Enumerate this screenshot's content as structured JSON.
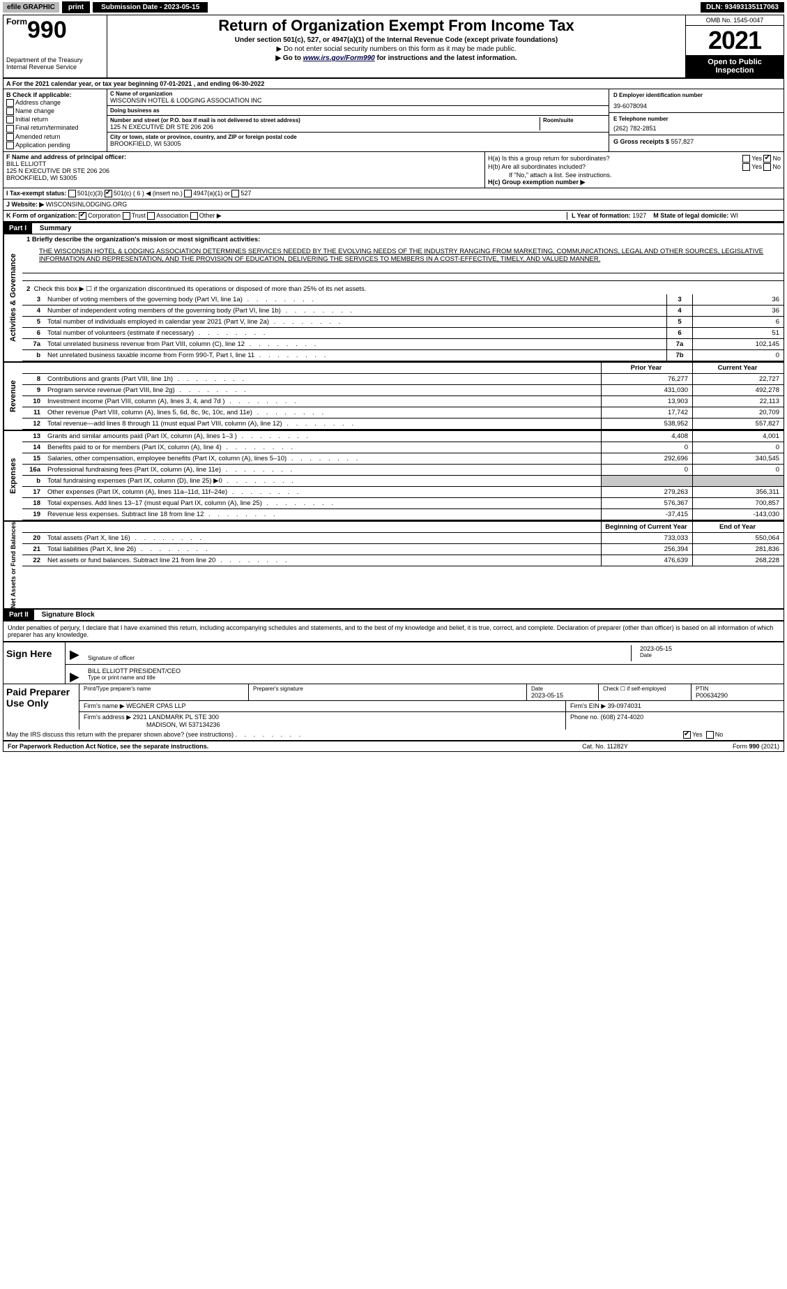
{
  "topbar": {
    "efile": "efile GRAPHIC",
    "print": "print",
    "submission": "Submission Date - 2023-05-15",
    "dln": "DLN: 93493135117063"
  },
  "header": {
    "form_prefix": "Form",
    "form_number": "990",
    "title": "Return of Organization Exempt From Income Tax",
    "sub1": "Under section 501(c), 527, or 4947(a)(1) of the Internal Revenue Code (except private foundations)",
    "sub2": "▶ Do not enter social security numbers on this form as it may be made public.",
    "sub3_pre": "▶ Go to ",
    "sub3_link": "www.irs.gov/Form990",
    "sub3_post": " for instructions and the latest information.",
    "dept1": "Department of the Treasury",
    "dept2": "Internal Revenue Service",
    "omb": "OMB No. 1545-0047",
    "year": "2021",
    "opi": "Open to Public Inspection"
  },
  "rowA": "A For the 2021 calendar year, or tax year beginning 07-01-2021     , and ending 06-30-2022",
  "colB": {
    "title": "B Check if applicable:",
    "items": [
      "Address change",
      "Name change",
      "Initial return",
      "Final return/terminated",
      "Amended return",
      "Application pending"
    ]
  },
  "colC": {
    "c_label": "C Name of organization",
    "c_value": "WISCONSIN HOTEL & LODGING ASSOCIATION INC",
    "dba_label": "Doing business as",
    "dba_value": "",
    "street_label": "Number and street (or P.O. box if mail is not delivered to street address)",
    "room_label": "Room/suite",
    "street_value": "125 N EXECUTIVE DR STE 206 206",
    "city_label": "City or town, state or province, country, and ZIP or foreign postal code",
    "city_value": "BROOKFIELD, WI  53005"
  },
  "colD": {
    "label": "D Employer identification number",
    "value": "39-6078094"
  },
  "colE": {
    "label": "E Telephone number",
    "value": "(262) 782-2851"
  },
  "colG": {
    "label": "G Gross receipts $",
    "value": "557,827"
  },
  "rowF": {
    "label": "F Name and address of principal officer:",
    "name": "BILL ELLIOTT",
    "addr1": "125 N EXECUTIVE DR STE 206 206",
    "addr2": "BROOKFIELD, WI  53005"
  },
  "rowH": {
    "ha": "H(a)  Is this a group return for subordinates?",
    "hb": "H(b)  Are all subordinates included?",
    "hb_note": "If \"No,\" attach a list. See instructions.",
    "hc": "H(c)  Group exemption number ▶",
    "yes": "Yes",
    "no": "No"
  },
  "rowI": {
    "label": "I   Tax-exempt status:",
    "opts": [
      "501(c)(3)",
      "501(c) ( 6 ) ◀ (insert no.)",
      "4947(a)(1) or",
      "527"
    ]
  },
  "rowJ": {
    "label": "J   Website: ▶",
    "value": "WISCONSINLODGING.ORG"
  },
  "rowK": {
    "label": "K Form of organization:",
    "opts": [
      "Corporation",
      "Trust",
      "Association",
      "Other ▶"
    ]
  },
  "rowL": {
    "label": "L Year of formation:",
    "value": "1927"
  },
  "rowM": {
    "label": "M State of legal domicile:",
    "value": "WI"
  },
  "partI": {
    "hdr": "Part I",
    "title": "Summary",
    "line1_label": "1  Briefly describe the organization's mission or most significant activities:",
    "mission": "THE WISCONSIN HOTEL & LODGING ASSOCIATION DETERMINES SERVICES NEEDED BY THE EVOLVING NEEDS OF THE INDUSTRY RANGING FROM MARKETING, COMMUNICATIONS, LEGAL AND OTHER SOURCES, LEGISLATIVE INFORMATION AND REPRESENTATION, AND THE PROVISION OF EDUCATION, DELIVERING THE SERVICES TO MEMBERS IN A COST-EFFECTIVE, TIMELY, AND VALUED MANNER.",
    "line2": "Check this box ▶ ☐  if the organization discontinued its operations or disposed of more than 25% of its net assets.",
    "prior_hdr": "Prior Year",
    "current_hdr": "Current Year",
    "boy_hdr": "Beginning of Current Year",
    "eoy_hdr": "End of Year"
  },
  "activities_rows": [
    {
      "n": "3",
      "desc": "Number of voting members of the governing body (Part VI, line 1a)",
      "box": "3",
      "val": "36"
    },
    {
      "n": "4",
      "desc": "Number of independent voting members of the governing body (Part VI, line 1b)",
      "box": "4",
      "val": "36"
    },
    {
      "n": "5",
      "desc": "Total number of individuals employed in calendar year 2021 (Part V, line 2a)",
      "box": "5",
      "val": "6"
    },
    {
      "n": "6",
      "desc": "Total number of volunteers (estimate if necessary)",
      "box": "6",
      "val": "51"
    },
    {
      "n": "7a",
      "desc": "Total unrelated business revenue from Part VIII, column (C), line 12",
      "box": "7a",
      "val": "102,145"
    },
    {
      "n": "b",
      "desc": "Net unrelated business taxable income from Form 990-T, Part I, line 11",
      "box": "7b",
      "val": "0"
    }
  ],
  "revenue_rows": [
    {
      "n": "8",
      "desc": "Contributions and grants (Part VIII, line 1h)",
      "prior": "76,277",
      "cur": "22,727"
    },
    {
      "n": "9",
      "desc": "Program service revenue (Part VIII, line 2g)",
      "prior": "431,030",
      "cur": "492,278"
    },
    {
      "n": "10",
      "desc": "Investment income (Part VIII, column (A), lines 3, 4, and 7d )",
      "prior": "13,903",
      "cur": "22,113"
    },
    {
      "n": "11",
      "desc": "Other revenue (Part VIII, column (A), lines 5, 6d, 8c, 9c, 10c, and 11e)",
      "prior": "17,742",
      "cur": "20,709"
    },
    {
      "n": "12",
      "desc": "Total revenue—add lines 8 through 11 (must equal Part VIII, column (A), line 12)",
      "prior": "538,952",
      "cur": "557,827"
    }
  ],
  "expense_rows": [
    {
      "n": "13",
      "desc": "Grants and similar amounts paid (Part IX, column (A), lines 1–3 )",
      "prior": "4,408",
      "cur": "4,001"
    },
    {
      "n": "14",
      "desc": "Benefits paid to or for members (Part IX, column (A), line 4)",
      "prior": "0",
      "cur": "0"
    },
    {
      "n": "15",
      "desc": "Salaries, other compensation, employee benefits (Part IX, column (A), lines 5–10)",
      "prior": "292,696",
      "cur": "340,545"
    },
    {
      "n": "16a",
      "desc": "Professional fundraising fees (Part IX, column (A), line 11e)",
      "prior": "0",
      "cur": "0"
    },
    {
      "n": "b",
      "desc": "Total fundraising expenses (Part IX, column (D), line 25) ▶0",
      "prior": "",
      "cur": "",
      "shade": true
    },
    {
      "n": "17",
      "desc": "Other expenses (Part IX, column (A), lines 11a–11d, 11f–24e)",
      "prior": "279,263",
      "cur": "356,311"
    },
    {
      "n": "18",
      "desc": "Total expenses. Add lines 13–17 (must equal Part IX, column (A), line 25)",
      "prior": "576,367",
      "cur": "700,857"
    },
    {
      "n": "19",
      "desc": "Revenue less expenses. Subtract line 18 from line 12",
      "prior": "-37,415",
      "cur": "-143,030"
    }
  ],
  "netassets_rows": [
    {
      "n": "20",
      "desc": "Total assets (Part X, line 16)",
      "prior": "733,033",
      "cur": "550,064"
    },
    {
      "n": "21",
      "desc": "Total liabilities (Part X, line 26)",
      "prior": "256,394",
      "cur": "281,836"
    },
    {
      "n": "22",
      "desc": "Net assets or fund balances. Subtract line 21 from line 20",
      "prior": "476,639",
      "cur": "268,228"
    }
  ],
  "side_labels": {
    "s1": "Activities & Governance",
    "s2": "Revenue",
    "s3": "Expenses",
    "s4": "Net Assets or Fund Balances"
  },
  "partII": {
    "hdr": "Part II",
    "title": "Signature Block",
    "declare": "Under penalties of perjury, I declare that I have examined this return, including accompanying schedules and statements, and to the best of my knowledge and belief, it is true, correct, and complete. Declaration of preparer (other than officer) is based on all information of which preparer has any knowledge."
  },
  "sign": {
    "here": "Sign Here",
    "sig_label": "Signature of officer",
    "date_label": "Date",
    "date": "2023-05-15",
    "name": "BILL ELLIOTT  PRESIDENT/CEO",
    "name_label": "Type or print name and title"
  },
  "prep": {
    "title": "Paid Preparer Use Only",
    "h1": "Print/Type preparer's name",
    "h2": "Preparer's signature",
    "h3": "Date",
    "h3v": "2023-05-15",
    "h4": "Check ☐ if self-employed",
    "h5": "PTIN",
    "h5v": "P00634290",
    "firm_label": "Firm's name    ▶",
    "firm": "WEGNER CPAS LLP",
    "ein_label": "Firm's EIN ▶",
    "ein": "39-0974031",
    "addr_label": "Firm's address ▶",
    "addr1": "2921 LANDMARK PL STE 300",
    "addr2": "MADISON, WI  537134236",
    "phone_label": "Phone no.",
    "phone": "(608) 274-4020"
  },
  "discuss": {
    "q": "May the IRS discuss this return with the preparer shown above? (see instructions)",
    "yes": "Yes",
    "no": "No"
  },
  "footer": {
    "l": "For Paperwork Reduction Act Notice, see the separate instructions.",
    "m": "Cat. No. 11282Y",
    "r": "Form 990 (2021)"
  }
}
